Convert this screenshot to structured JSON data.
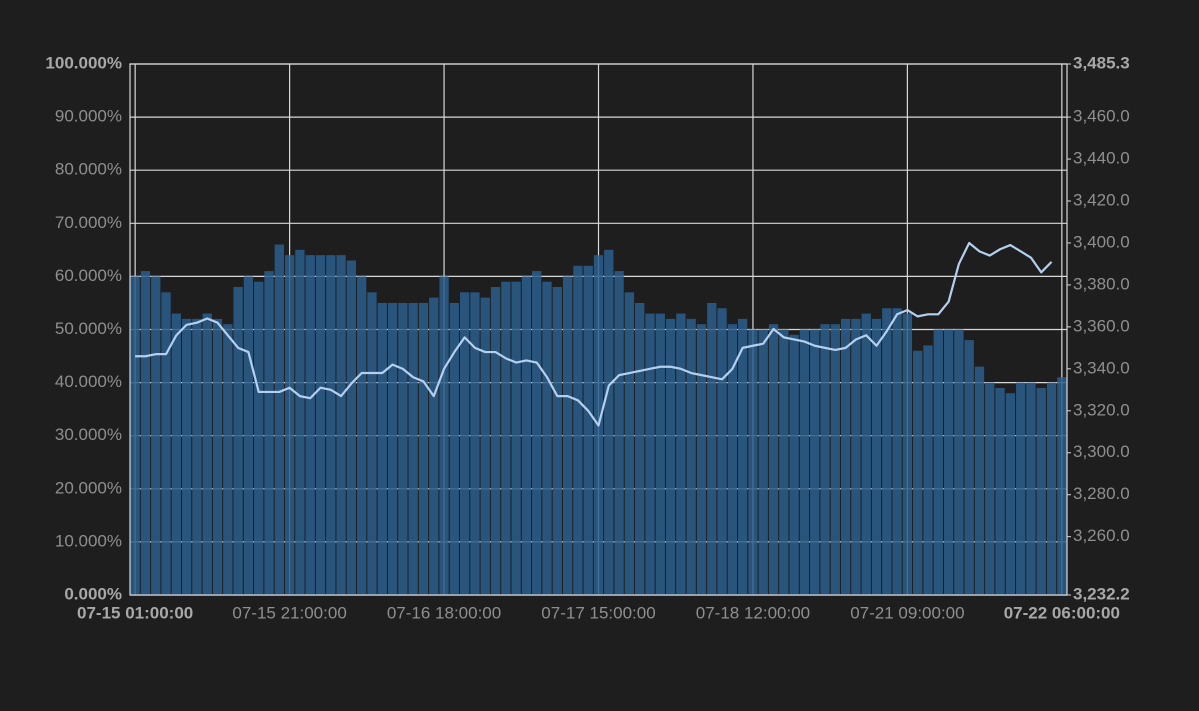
{
  "chart_data": {
    "type": "combo",
    "categories": [
      "07-15 01:00:00",
      null,
      null,
      null,
      null,
      null,
      null,
      null,
      null,
      null,
      null,
      null,
      null,
      null,
      null,
      "07-15 21:00:00",
      null,
      null,
      null,
      null,
      null,
      null,
      null,
      null,
      null,
      null,
      null,
      null,
      null,
      null,
      "07-16 18:00:00",
      null,
      null,
      null,
      null,
      null,
      null,
      null,
      null,
      null,
      null,
      null,
      null,
      null,
      null,
      "07-17 15:00:00",
      null,
      null,
      null,
      null,
      null,
      null,
      null,
      null,
      null,
      null,
      null,
      null,
      null,
      null,
      "07-18 12:00:00",
      null,
      null,
      null,
      null,
      null,
      null,
      null,
      null,
      null,
      null,
      null,
      null,
      null,
      null,
      "07-21 09:00:00",
      null,
      null,
      null,
      null,
      null,
      null,
      null,
      null,
      null,
      null,
      null,
      null,
      null,
      null,
      "07-22 06:00:00"
    ],
    "series": [
      {
        "type": "bar",
        "axis": "y",
        "color": "#2b5f8e",
        "values": [
          60,
          61,
          60,
          57,
          53,
          52,
          52,
          53,
          52,
          51,
          58,
          60,
          59,
          61,
          66,
          64,
          65,
          64,
          64,
          64,
          64,
          63,
          60,
          57,
          55,
          55,
          55,
          55,
          55,
          56,
          60,
          55,
          57,
          57,
          56,
          58,
          59,
          59,
          60,
          61,
          59,
          58,
          60,
          62,
          62,
          64,
          65,
          61,
          57,
          55,
          53,
          53,
          52,
          53,
          52,
          51,
          55,
          54,
          51,
          52,
          50,
          50,
          51,
          50,
          49,
          50,
          50,
          51,
          51,
          52,
          52,
          53,
          52,
          54,
          54,
          53,
          46,
          47,
          50,
          50,
          50,
          48,
          43,
          40,
          39,
          38,
          40,
          40,
          39,
          40,
          41
        ]
      },
      {
        "type": "line",
        "axis": "y2",
        "color": "#b4d0f0",
        "values": [
          3346,
          3346,
          3347,
          3347,
          3356,
          3361,
          3362,
          3364,
          3362,
          3356,
          3350,
          3348,
          3329,
          3329,
          3329,
          3331,
          3327,
          3326,
          3331,
          3330,
          3327,
          3333,
          3338,
          3338,
          3338,
          3342,
          3340,
          3336,
          3334,
          3327,
          3340,
          3348,
          3355,
          3350,
          3348,
          3348,
          3345,
          3343,
          3344,
          3343,
          3336,
          3327,
          3327,
          3325,
          3320,
          3313,
          3332,
          3337,
          3338,
          3339,
          3340,
          3341,
          3341,
          3340,
          3338,
          3337,
          3336,
          3335,
          3340,
          3350,
          3351,
          3352,
          3359,
          3355,
          3354,
          3353,
          3351,
          3350,
          3349,
          3350,
          3354,
          3356,
          3351,
          3358,
          3366,
          3368,
          3365,
          3366,
          3366,
          3372,
          3390,
          3400,
          3396,
          3394,
          3397,
          3399,
          3396,
          3393,
          3386,
          3391,
          null
        ]
      }
    ],
    "ylim": [
      0,
      100
    ],
    "yticks": [
      {
        "value": 0,
        "label": "0.000%"
      },
      {
        "value": 10,
        "label": "10.000%"
      },
      {
        "value": 20,
        "label": "20.000%"
      },
      {
        "value": 30,
        "label": "30.000%"
      },
      {
        "value": 40,
        "label": "40.000%"
      },
      {
        "value": 50,
        "label": "50.000%"
      },
      {
        "value": 60,
        "label": "60.000%"
      },
      {
        "value": 70,
        "label": "70.000%"
      },
      {
        "value": 80,
        "label": "80.000%"
      },
      {
        "value": 90,
        "label": "90.000%"
      },
      {
        "value": 100,
        "label": "100.000%"
      }
    ],
    "y2lim": [
      3232.2,
      3485.3
    ],
    "y2ticks": [
      {
        "value": 3232.2,
        "label": "3,232.2"
      },
      {
        "value": 3260,
        "label": "3,260.0"
      },
      {
        "value": 3280,
        "label": "3,280.0"
      },
      {
        "value": 3300,
        "label": "3,300.0"
      },
      {
        "value": 3320,
        "label": "3,320.0"
      },
      {
        "value": 3340,
        "label": "3,340.0"
      },
      {
        "value": 3360,
        "label": "3,360.0"
      },
      {
        "value": 3380,
        "label": "3,380.0"
      },
      {
        "value": 3400,
        "label": "3,400.0"
      },
      {
        "value": 3420,
        "label": "3,420.0"
      },
      {
        "value": 3440,
        "label": "3,440.0"
      },
      {
        "value": 3460,
        "label": "3,460.0"
      },
      {
        "value": 3485.3,
        "label": "3,485.3"
      }
    ],
    "grid": true
  }
}
